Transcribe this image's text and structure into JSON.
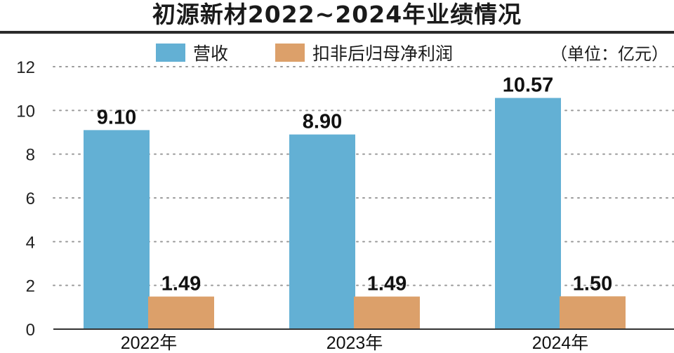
{
  "chart_data": {
    "type": "bar",
    "title": "初源新材2022~2024年业绩情况",
    "unit_label": "（单位：亿元）",
    "categories": [
      "2022年",
      "2023年",
      "2024年"
    ],
    "series": [
      {
        "name": "营收",
        "values": [
          9.1,
          8.9,
          10.57
        ],
        "color": "#63b0d4",
        "labels": [
          "9.10",
          "8.90",
          "10.57"
        ]
      },
      {
        "name": "扣非后归母净利润",
        "values": [
          1.49,
          1.49,
          1.5
        ],
        "color": "#dca06a",
        "labels": [
          "1.49",
          "1.49",
          "1.50"
        ]
      }
    ],
    "ylim": [
      0,
      12
    ],
    "yticks": [
      "0",
      "2",
      "4",
      "6",
      "8",
      "10",
      "12"
    ],
    "grid": true,
    "legend_position": "top"
  }
}
